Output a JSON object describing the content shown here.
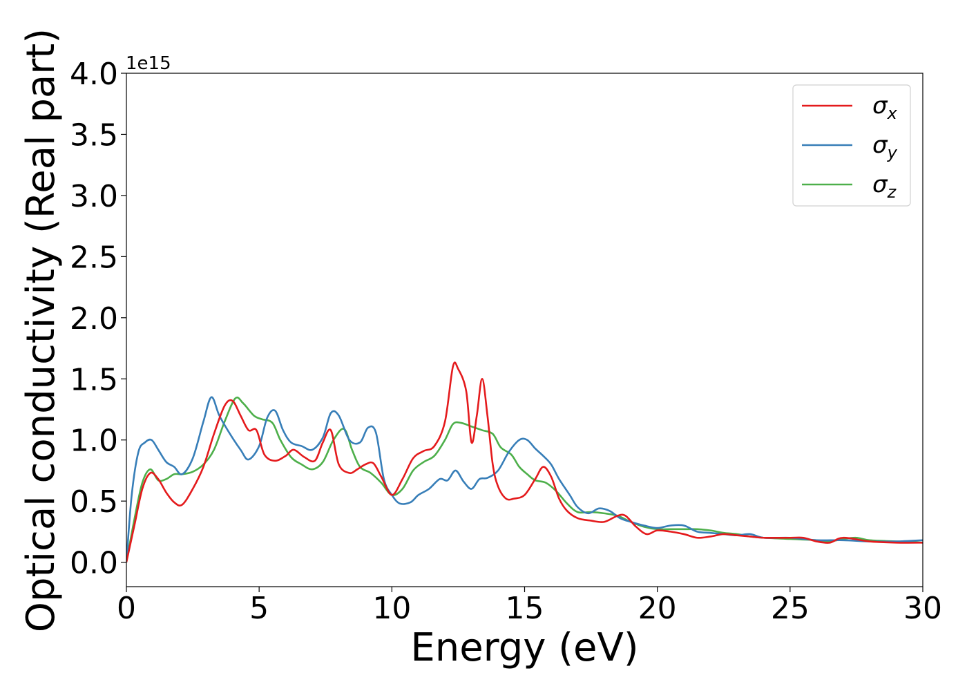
{
  "chart_data": {
    "type": "line",
    "xlabel": "Energy (eV)",
    "ylabel": "Optical conductivity (Real part)",
    "offset_text": "1e15",
    "xlim": [
      0,
      30
    ],
    "ylim": [
      -0.2,
      4.0
    ],
    "x_ticks": [
      0,
      5,
      10,
      15,
      20,
      25,
      30
    ],
    "x_tick_labels": [
      "0",
      "5",
      "10",
      "15",
      "20",
      "25",
      "30"
    ],
    "y_ticks": [
      0.0,
      0.5,
      1.0,
      1.5,
      2.0,
      2.5,
      3.0,
      3.5,
      4.0
    ],
    "y_tick_labels": [
      "0.0",
      "0.5",
      "1.0",
      "1.5",
      "2.0",
      "2.5",
      "3.0",
      "3.5",
      "4.0"
    ],
    "legend_position": "top-right",
    "grid": false,
    "series": [
      {
        "name": "σ",
        "sub": "x",
        "color": "#e41a1c",
        "x": [
          0,
          0.3,
          0.6,
          0.9,
          1.2,
          1.5,
          1.8,
          2.1,
          2.5,
          2.9,
          3.3,
          3.7,
          4.0,
          4.3,
          4.6,
          4.9,
          5.2,
          5.6,
          6.0,
          6.3,
          6.7,
          7.1,
          7.4,
          7.7,
          8.0,
          8.4,
          8.7,
          9.0,
          9.3,
          9.6,
          10.0,
          10.4,
          10.8,
          11.2,
          11.6,
          12.0,
          12.3,
          12.5,
          12.8,
          13.0,
          13.2,
          13.4,
          13.6,
          13.8,
          14.0,
          14.3,
          14.6,
          15.0,
          15.4,
          15.7,
          16.0,
          16.3,
          16.6,
          17.0,
          17.5,
          18.0,
          18.5,
          18.8,
          19.2,
          19.6,
          20.0,
          20.5,
          21.0,
          21.5,
          22.0,
          22.5,
          23.0,
          23.5,
          24.0,
          25.0,
          25.5,
          26.0,
          26.5,
          27.0,
          28.0,
          29.0,
          30.0
        ],
        "y": [
          0.0,
          0.3,
          0.6,
          0.73,
          0.68,
          0.57,
          0.49,
          0.47,
          0.6,
          0.78,
          1.05,
          1.28,
          1.32,
          1.2,
          1.08,
          1.08,
          0.88,
          0.83,
          0.87,
          0.92,
          0.86,
          0.83,
          0.98,
          1.08,
          0.8,
          0.73,
          0.76,
          0.8,
          0.81,
          0.7,
          0.55,
          0.68,
          0.85,
          0.91,
          0.95,
          1.15,
          1.6,
          1.58,
          1.4,
          0.98,
          1.2,
          1.5,
          1.2,
          0.8,
          0.62,
          0.52,
          0.52,
          0.55,
          0.68,
          0.78,
          0.7,
          0.52,
          0.42,
          0.36,
          0.34,
          0.33,
          0.38,
          0.38,
          0.29,
          0.23,
          0.26,
          0.25,
          0.23,
          0.2,
          0.21,
          0.23,
          0.22,
          0.21,
          0.2,
          0.2,
          0.2,
          0.17,
          0.16,
          0.2,
          0.17,
          0.16,
          0.16
        ]
      },
      {
        "name": "σ",
        "sub": "y",
        "color": "#377eb8",
        "x": [
          0,
          0.2,
          0.45,
          0.7,
          0.95,
          1.2,
          1.5,
          1.8,
          2.1,
          2.5,
          2.9,
          3.2,
          3.5,
          3.9,
          4.3,
          4.6,
          5.0,
          5.3,
          5.6,
          5.9,
          6.2,
          6.6,
          7.0,
          7.4,
          7.7,
          8.0,
          8.4,
          8.8,
          9.1,
          9.4,
          9.7,
          10.0,
          10.3,
          10.7,
          11.0,
          11.4,
          11.8,
          12.1,
          12.4,
          12.7,
          13.0,
          13.3,
          13.6,
          14.0,
          14.4,
          14.8,
          15.1,
          15.4,
          15.7,
          16.0,
          16.3,
          16.7,
          17.0,
          17.4,
          17.8,
          18.2,
          18.6,
          19.0,
          19.5,
          20.0,
          20.5,
          21.0,
          21.5,
          22.0,
          22.5,
          23.0,
          23.5,
          24.0,
          25.0,
          26.0,
          27.0,
          28.0,
          29.0,
          30.0
        ],
        "y": [
          0.0,
          0.55,
          0.9,
          0.98,
          1.0,
          0.92,
          0.82,
          0.78,
          0.72,
          0.85,
          1.15,
          1.35,
          1.2,
          1.05,
          0.92,
          0.84,
          0.95,
          1.18,
          1.24,
          1.08,
          0.98,
          0.95,
          0.92,
          1.02,
          1.22,
          1.2,
          1.0,
          0.98,
          1.1,
          1.06,
          0.68,
          0.55,
          0.48,
          0.49,
          0.55,
          0.6,
          0.68,
          0.67,
          0.75,
          0.66,
          0.6,
          0.68,
          0.69,
          0.75,
          0.9,
          1.0,
          1.0,
          0.93,
          0.87,
          0.8,
          0.68,
          0.55,
          0.45,
          0.4,
          0.44,
          0.42,
          0.36,
          0.33,
          0.3,
          0.28,
          0.3,
          0.3,
          0.25,
          0.24,
          0.23,
          0.22,
          0.23,
          0.2,
          0.2,
          0.18,
          0.18,
          0.17,
          0.17,
          0.18
        ]
      },
      {
        "name": "σ",
        "sub": "z",
        "color": "#4daf4a",
        "x": [
          0,
          0.3,
          0.6,
          0.9,
          1.2,
          1.5,
          1.8,
          2.1,
          2.5,
          2.9,
          3.3,
          3.7,
          4.1,
          4.4,
          4.8,
          5.1,
          5.5,
          5.8,
          6.2,
          6.6,
          7.0,
          7.4,
          7.8,
          8.2,
          8.5,
          8.8,
          9.2,
          9.6,
          10.0,
          10.4,
          10.8,
          11.2,
          11.6,
          12.0,
          12.3,
          12.6,
          13.0,
          13.4,
          13.8,
          14.1,
          14.5,
          14.8,
          15.1,
          15.4,
          15.8,
          16.2,
          16.6,
          17.0,
          17.5,
          18.0,
          18.5,
          19.0,
          19.5,
          20.0,
          20.5,
          21.0,
          21.5,
          22.0,
          22.5,
          23.0,
          23.5,
          24.0,
          25.0,
          26.0,
          26.5,
          27.0,
          27.5,
          28.0,
          29.0,
          30.0
        ],
        "y": [
          0.0,
          0.35,
          0.65,
          0.76,
          0.67,
          0.68,
          0.72,
          0.72,
          0.74,
          0.8,
          0.92,
          1.15,
          1.34,
          1.3,
          1.2,
          1.17,
          1.14,
          1.0,
          0.86,
          0.8,
          0.76,
          0.82,
          1.0,
          1.09,
          0.92,
          0.78,
          0.73,
          0.65,
          0.55,
          0.6,
          0.75,
          0.82,
          0.87,
          1.0,
          1.13,
          1.14,
          1.11,
          1.08,
          1.05,
          0.94,
          0.88,
          0.78,
          0.72,
          0.67,
          0.65,
          0.58,
          0.48,
          0.41,
          0.41,
          0.4,
          0.38,
          0.33,
          0.29,
          0.27,
          0.27,
          0.27,
          0.27,
          0.26,
          0.24,
          0.23,
          0.21,
          0.2,
          0.19,
          0.18,
          0.17,
          0.19,
          0.2,
          0.18,
          0.17,
          0.16
        ]
      }
    ]
  }
}
